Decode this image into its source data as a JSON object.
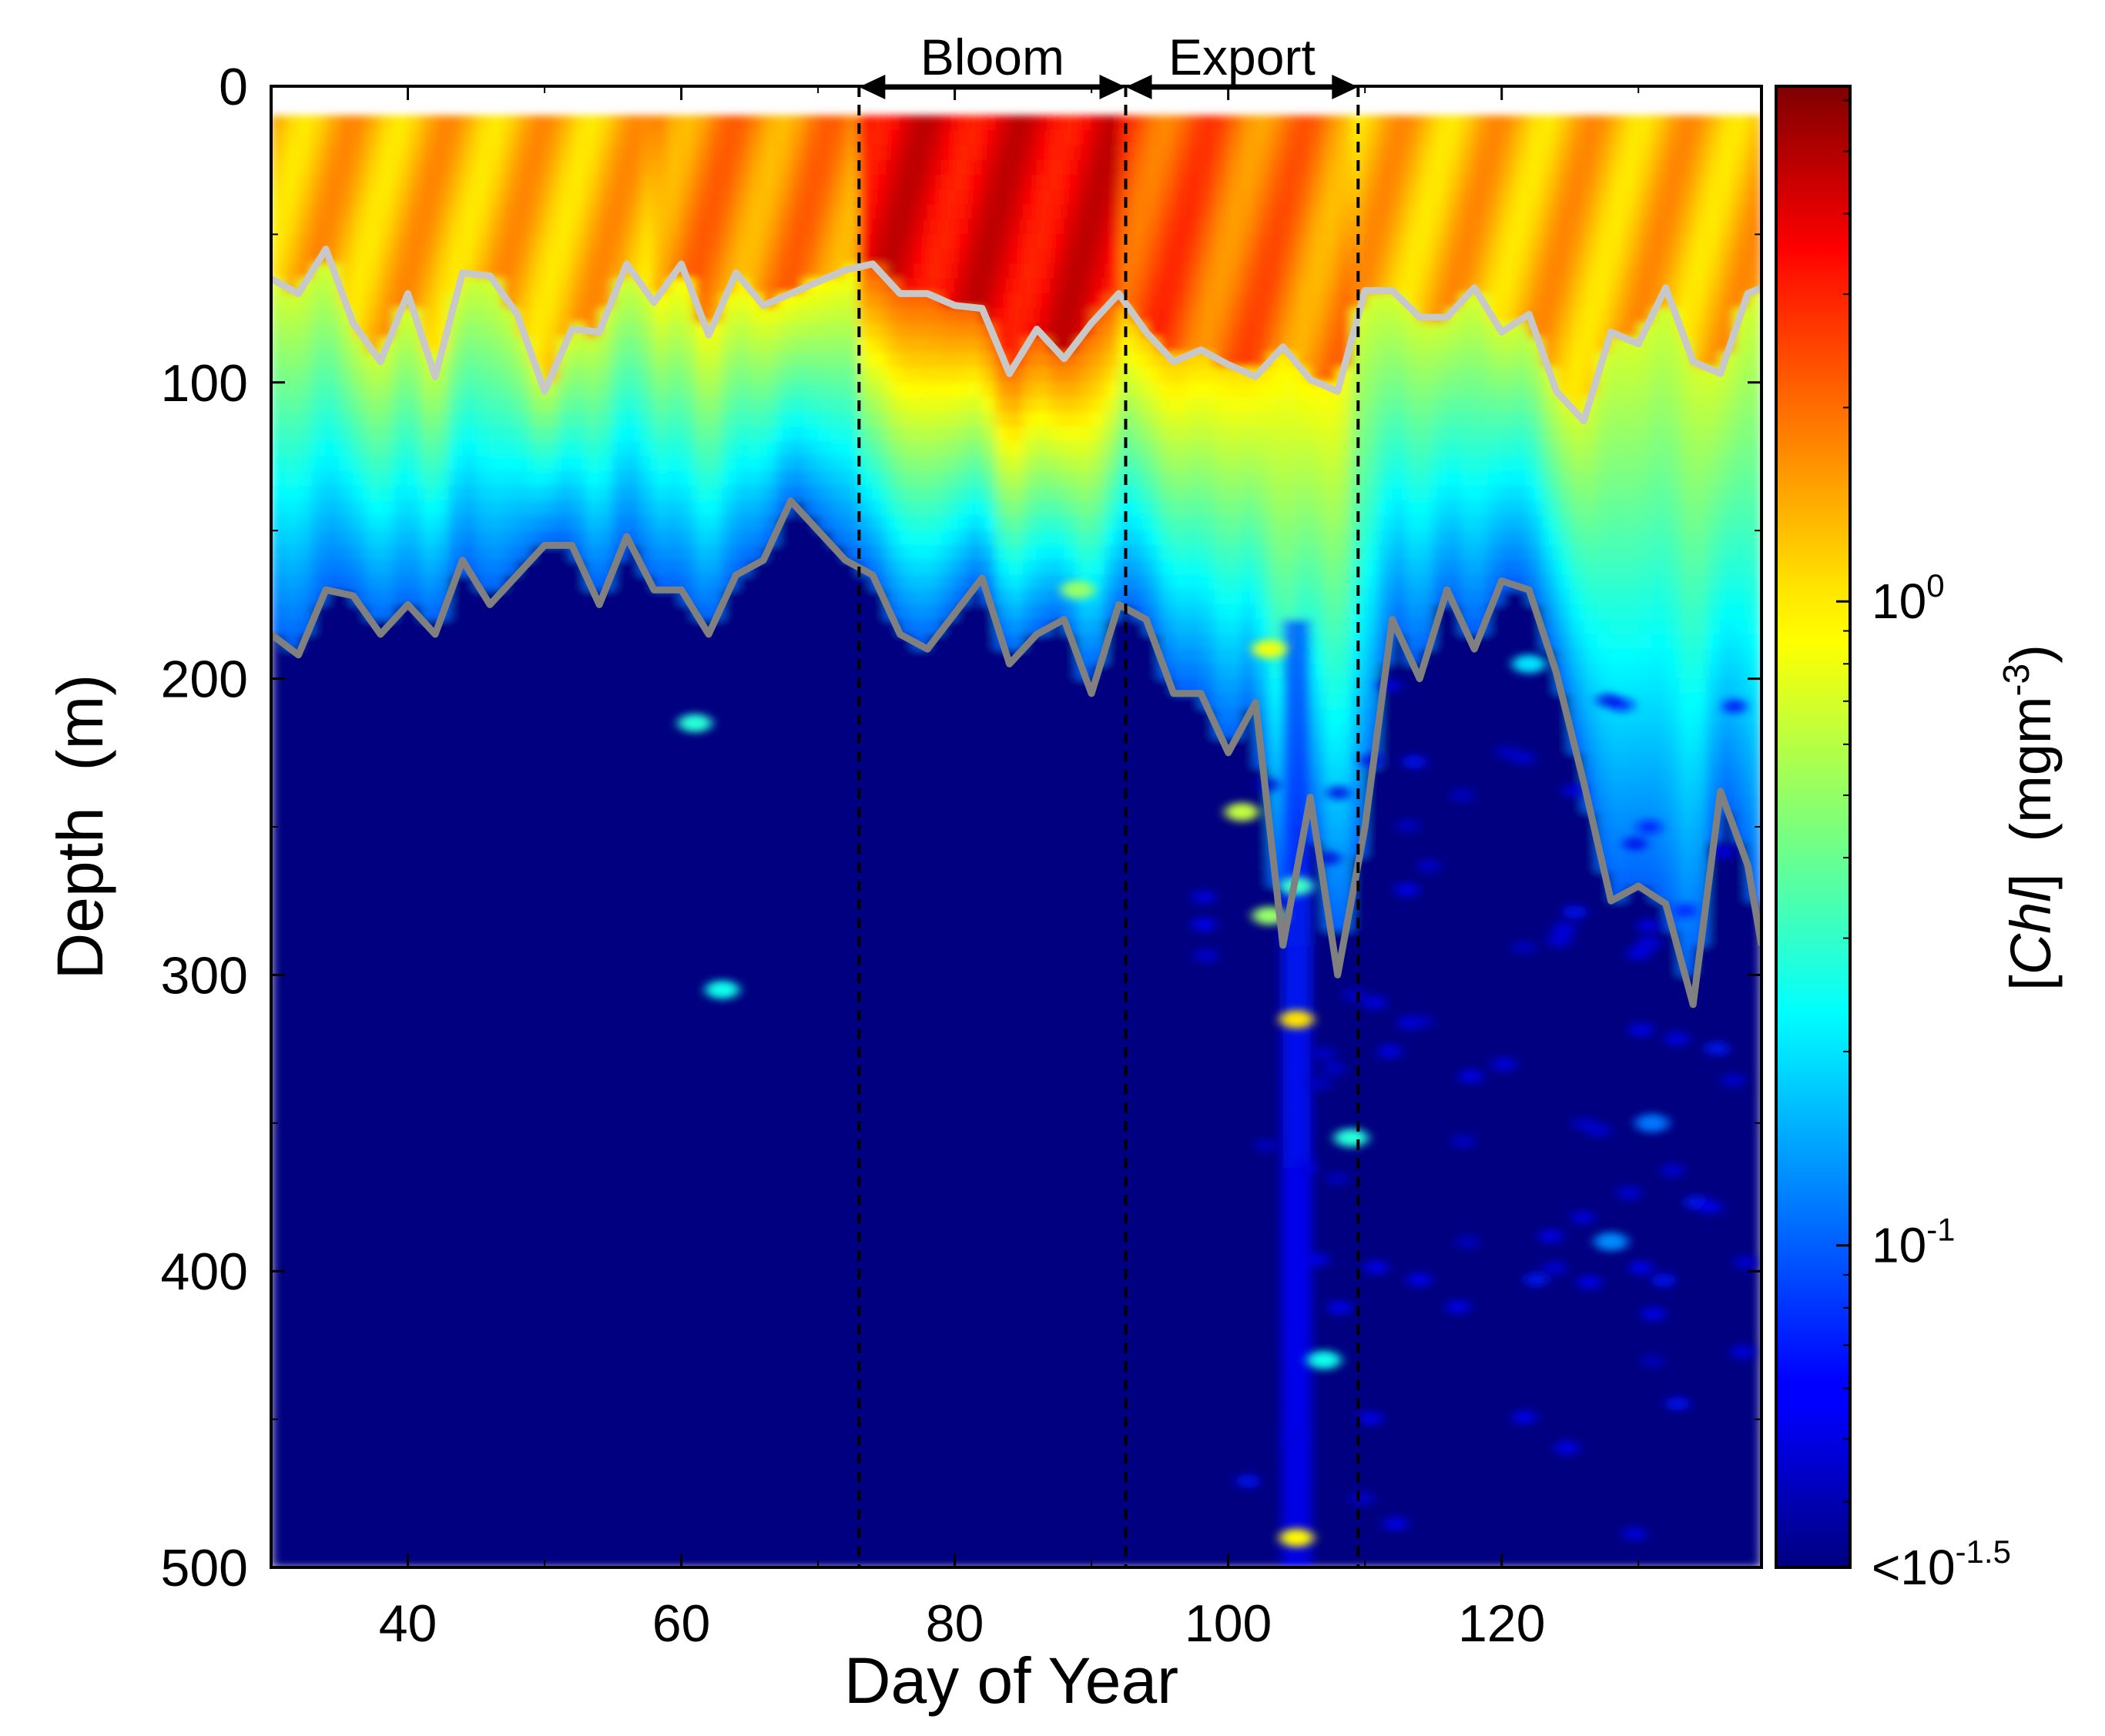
{
  "chart_data": {
    "type": "heatmap",
    "xlabel": "Day of Year",
    "ylabel": "Depth  (m)",
    "colorbar_label": "[Chl]  (mgm⁻³)",
    "colorbar_label_parts": {
      "open": "[",
      "italic": "Chl",
      "close": "]  (mgm",
      "sup": "-3",
      "end": ")"
    },
    "colormap": "jet",
    "colorscale": "log",
    "clim_log10": [
      -1.5,
      0.8
    ],
    "xlim": [
      30,
      139
    ],
    "ylim": [
      0,
      500
    ],
    "y_inverted": true,
    "xticks": [
      40,
      60,
      80,
      100,
      120
    ],
    "yticks": [
      0,
      100,
      200,
      300,
      400,
      500
    ],
    "colorbar_ticks": [
      {
        "log10": 0,
        "base": "10",
        "exp": "0",
        "prefix": ""
      },
      {
        "log10": -1,
        "base": "10",
        "exp": "-1",
        "prefix": ""
      },
      {
        "log10": -1.5,
        "base": "10",
        "exp": "-1.5",
        "prefix": "<"
      }
    ],
    "grid": false,
    "data_top_depth": 10,
    "phases": [
      {
        "label": "Bloom",
        "start_day": 73,
        "end_day": 92.5
      },
      {
        "label": "Export",
        "start_day": 92.5,
        "end_day": 109.5
      }
    ],
    "phase_boundaries": [
      73,
      92.5,
      109.5
    ],
    "series": [
      {
        "line_color": "#c8c8c8",
        "days": [
          30,
          32,
          34,
          36,
          38,
          40,
          42,
          44,
          46,
          48,
          50,
          52,
          54,
          56,
          58,
          60,
          62,
          64,
          66,
          68,
          70,
          72,
          74,
          76,
          78,
          80,
          82,
          84,
          86,
          88,
          90,
          92,
          94,
          96,
          98,
          100,
          102,
          104,
          106,
          108,
          110,
          112,
          114,
          116,
          118,
          120,
          122,
          124,
          126,
          128,
          130,
          132,
          134,
          136,
          138,
          139
        ],
        "depths": [
          65,
          70,
          55,
          80,
          93,
          70,
          98,
          63,
          64,
          77,
          103,
          82,
          83,
          60,
          73,
          60,
          84,
          63,
          74,
          70,
          66,
          62,
          60,
          70,
          70,
          74,
          75,
          97,
          82,
          92,
          80,
          70,
          83,
          93,
          89,
          94,
          98,
          88,
          99,
          103,
          69,
          69,
          78,
          78,
          68,
          83,
          77,
          103,
          113,
          83,
          87,
          68,
          93,
          97,
          70,
          68
        ]
      },
      {
        "line_color": "#808080",
        "days": [
          30,
          32,
          34,
          36,
          38,
          40,
          42,
          44,
          46,
          48,
          50,
          52,
          54,
          56,
          58,
          60,
          62,
          64,
          66,
          68,
          70,
          72,
          74,
          76,
          78,
          80,
          82,
          84,
          86,
          88,
          90,
          92,
          94,
          96,
          98,
          100,
          102,
          104,
          106,
          108,
          110,
          112,
          114,
          116,
          118,
          120,
          122,
          124,
          126,
          128,
          130,
          132,
          134,
          136,
          138,
          139
        ],
        "depths": [
          185,
          192,
          170,
          172,
          185,
          175,
          185,
          160,
          175,
          165,
          155,
          155,
          175,
          152,
          170,
          170,
          185,
          165,
          160,
          140,
          150,
          160,
          165,
          185,
          190,
          178,
          166,
          195,
          185,
          180,
          205,
          175,
          180,
          205,
          205,
          225,
          208,
          290,
          240,
          300,
          250,
          180,
          200,
          170,
          190,
          167,
          170,
          198,
          235,
          275,
          270,
          276,
          310,
          238,
          263,
          290
        ]
      }
    ]
  }
}
